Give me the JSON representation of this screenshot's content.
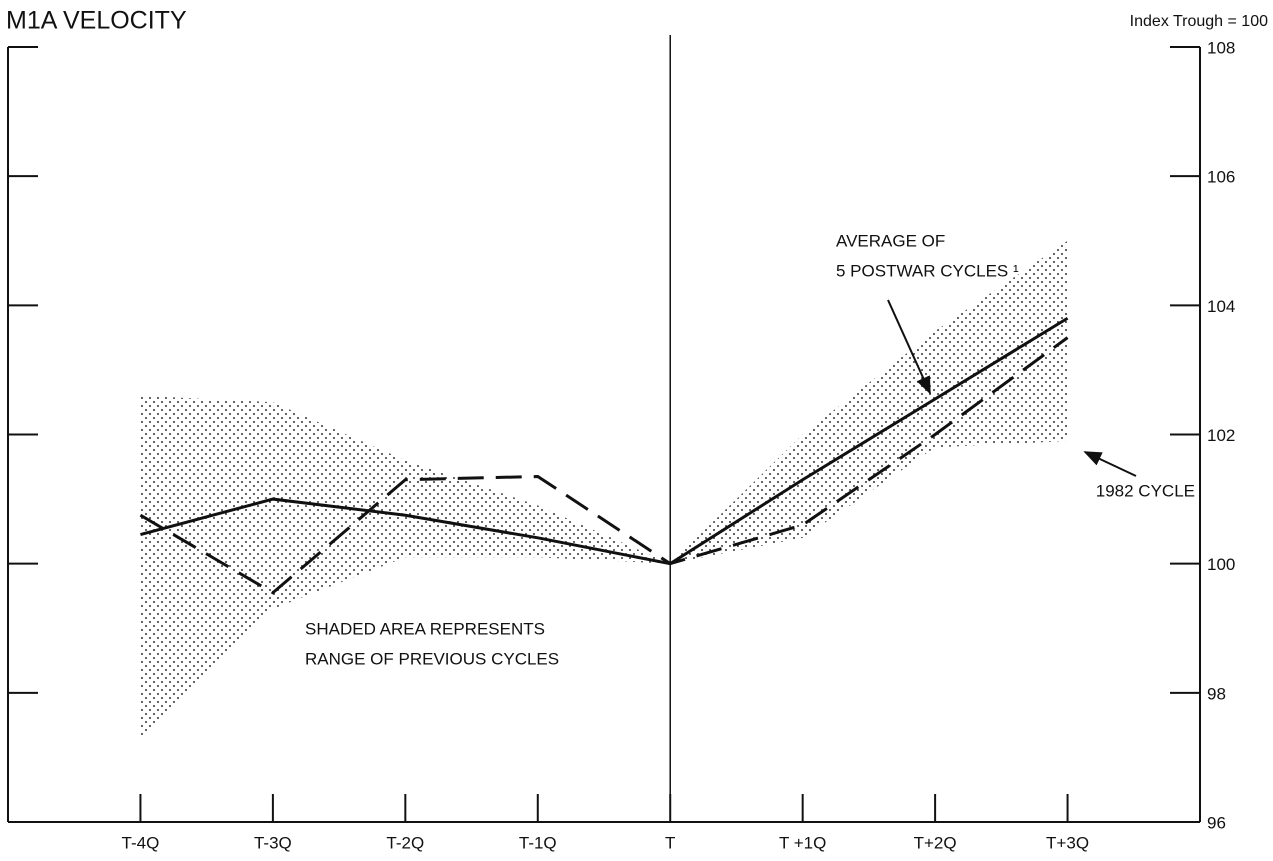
{
  "chart_data": {
    "type": "line",
    "title": "M1A VELOCITY",
    "y_axis_label": "Index  Trough = 100",
    "categories": [
      "T-4Q",
      "T-3Q",
      "T-2Q",
      "T-1Q",
      "T",
      "T +1Q",
      "T+2Q",
      "T+3Q"
    ],
    "ylim": [
      96,
      108
    ],
    "yticks": [
      96,
      98,
      100,
      102,
      104,
      106,
      108
    ],
    "series": [
      {
        "label": [
          "AVERAGE OF",
          "5 POSTWAR CYCLES ¹"
        ],
        "style": "solid",
        "color": "#111111",
        "values": [
          100.45,
          101.0,
          100.75,
          100.4,
          100.0,
          101.3,
          102.55,
          103.8
        ]
      },
      {
        "label": [
          "1982 CYCLE"
        ],
        "style": "dashed",
        "color": "#111111",
        "values": [
          100.75,
          99.55,
          101.3,
          101.35,
          100.0,
          100.6,
          102.0,
          103.5
        ]
      }
    ],
    "range": {
      "label": [
        "SHADED AREA REPRESENTS",
        "RANGE OF PREVIOUS CYCLES"
      ],
      "color": "#222222",
      "upper": [
        102.6,
        102.5,
        101.6,
        100.9,
        100.0,
        102.0,
        103.6,
        105.0
      ],
      "lower": [
        97.3,
        99.3,
        100.1,
        100.1,
        100.0,
        100.4,
        101.8,
        101.9
      ]
    }
  }
}
